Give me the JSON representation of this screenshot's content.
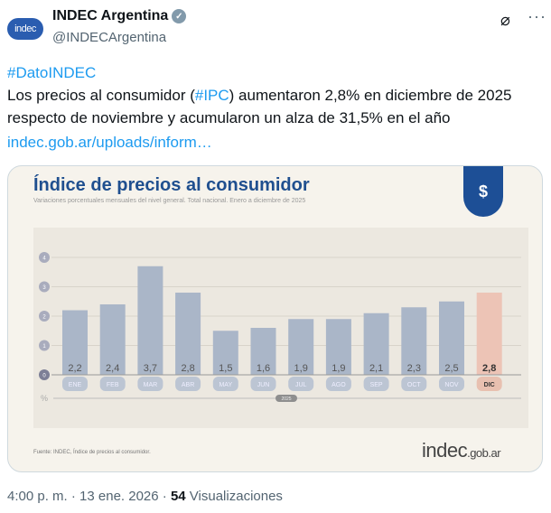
{
  "tweet": {
    "author_name": "INDEC Argentina",
    "handle": "@INDECArgentina",
    "avatar_text": "indec",
    "hashtag_line": "#DatoINDEC",
    "body_pre": "Los precios al consumidor (",
    "body_tag": "#IPC",
    "body_post": ") aumentaron 2,8% en diciembre de 2025 respecto de noviembre y acumularon un alza de 31,5% en el año",
    "link": "indec.gob.ar/uploads/inform…",
    "time": "4:00 p. m.",
    "date": " · 13 ene. 2026 · ",
    "views_count": "54",
    "views_label": " Visualizaciones"
  },
  "icons": {
    "verified": "verified-badge-icon",
    "grok": "grok-icon",
    "more": "more-icon"
  },
  "image": {
    "source": "Fuente: INDEC, Índice de precios al consumidor.",
    "logo": "indec",
    "logo_suffix": ".gob.ar"
  },
  "chart_data": {
    "type": "bar",
    "title": "Índice de precios al consumidor",
    "subtitle": "Variaciones porcentuales mensuales del nivel general. Total nacional. Enero a diciembre de 2025",
    "categories": [
      "ENE",
      "FEB",
      "MAR",
      "ABR",
      "MAY",
      "JUN",
      "JUL",
      "AGO",
      "SEP",
      "OCT",
      "NOV",
      "DIC"
    ],
    "values": [
      2.2,
      2.4,
      3.7,
      2.8,
      1.5,
      1.6,
      1.9,
      1.9,
      2.1,
      2.3,
      2.5,
      2.8
    ],
    "value_labels": [
      "2,2",
      "2,4",
      "3,7",
      "2,8",
      "1,5",
      "1,6",
      "1,9",
      "1,9",
      "2,1",
      "2,3",
      "2,5",
      "2,8"
    ],
    "yticks": [
      0,
      1,
      2,
      3,
      4
    ],
    "ylim": [
      0,
      4.5
    ],
    "ylabel": "%",
    "xlabel": "2025",
    "colors": {
      "bar": "#aab6c8",
      "highlight": "#edc4b6",
      "label_pill": "#bcc5d3",
      "highlight_pill": "#e8c0b0"
    }
  }
}
